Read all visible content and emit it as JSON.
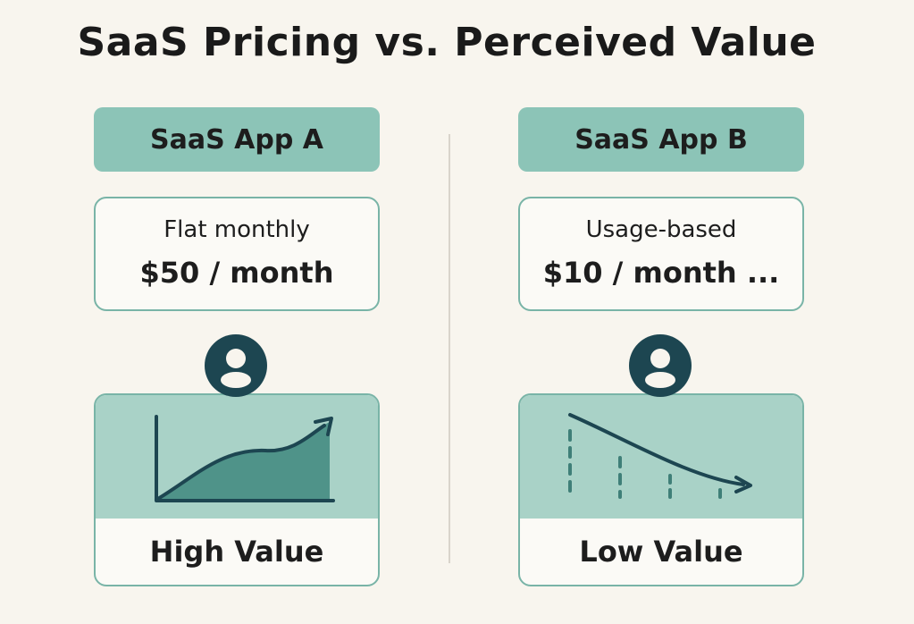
{
  "title": "SaaS Pricing vs. Perceived Value",
  "colors": {
    "background": "#f8f5ee",
    "header_fill": "#8cc4b7",
    "border": "#79b4a7",
    "chart_fill": "#a9d2c7",
    "dark_teal": "#1d4651",
    "area_fill": "#4f9389"
  },
  "apps": [
    {
      "name": "SaaS App A",
      "pricing_model": "Flat monthly",
      "price": "$50 / month",
      "icon": "user-icon",
      "chart_icon": "rising-area-chart-icon",
      "value_label": "High Value"
    },
    {
      "name": "SaaS App B",
      "pricing_model": "Usage-based",
      "price": "$10 / month ...",
      "icon": "user-icon",
      "chart_icon": "declining-curve-chart-icon",
      "value_label": "Low Value"
    }
  ]
}
